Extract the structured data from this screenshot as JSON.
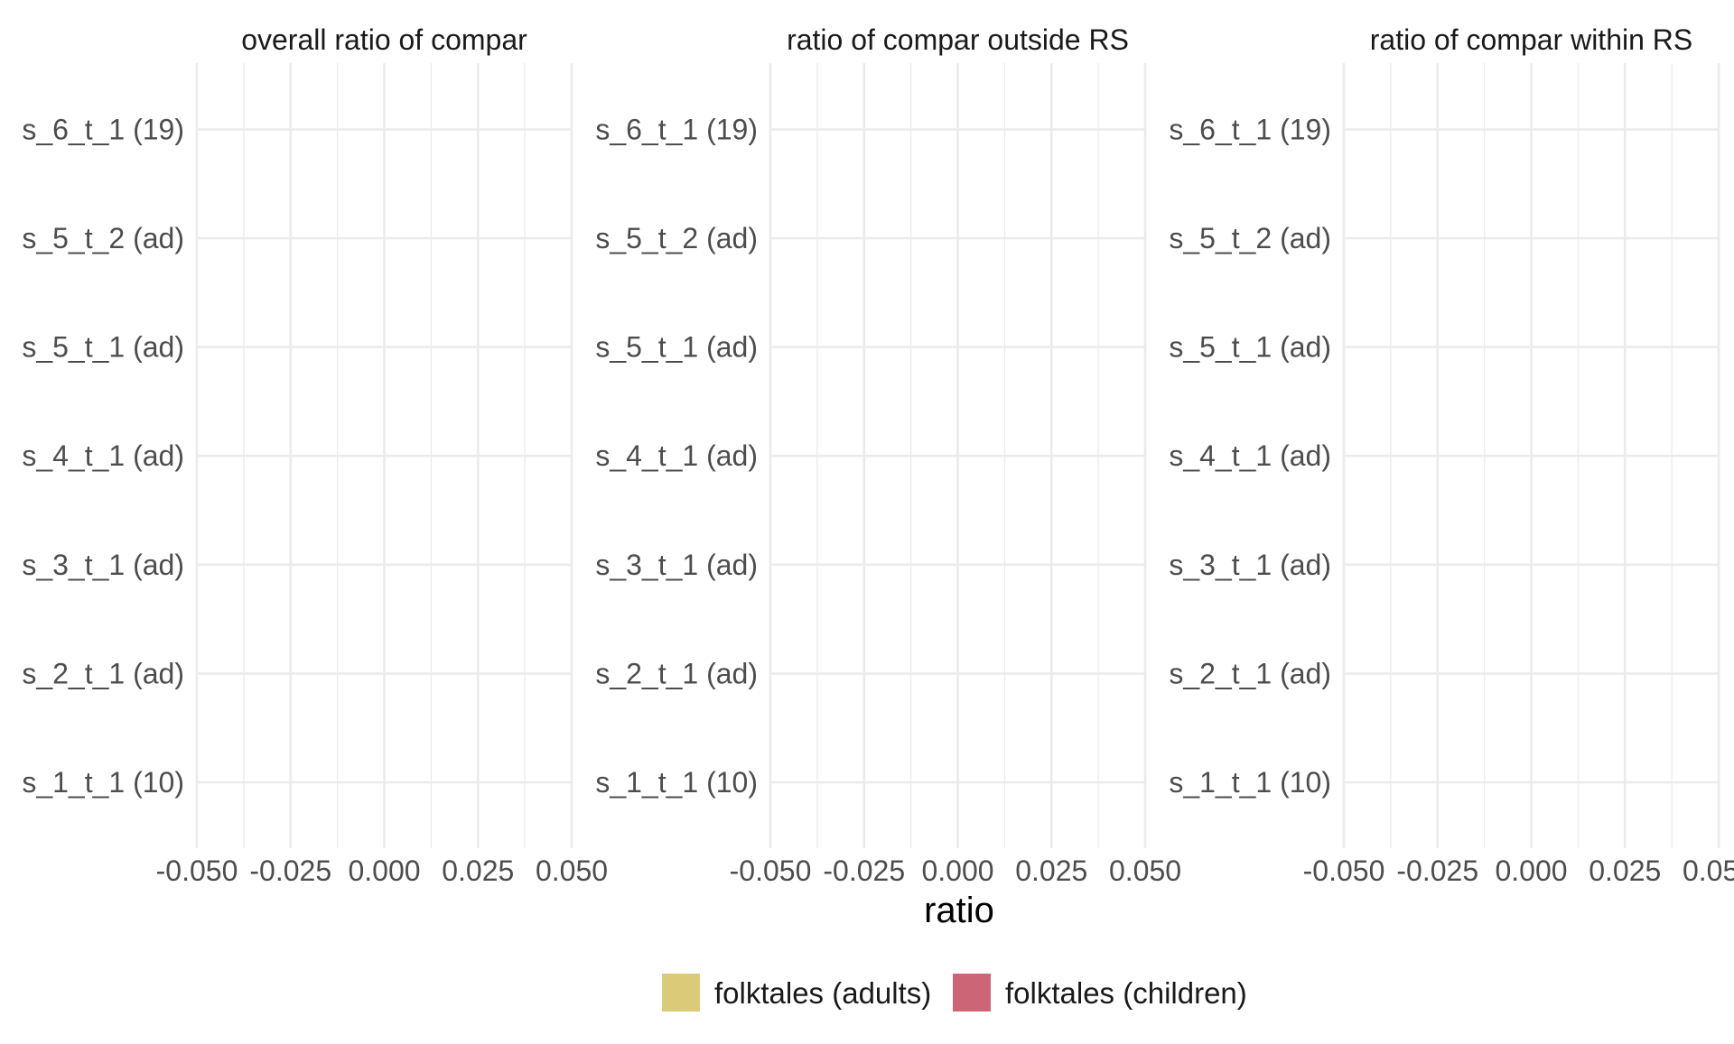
{
  "chart_data": {
    "type": "bar",
    "orientation": "horizontal",
    "xlabel": "ratio",
    "ylabel": "",
    "xlim": [
      -0.05,
      0.05
    ],
    "x_ticks": [
      "-0.050",
      "-0.025",
      "0.000",
      "0.025",
      "0.050"
    ],
    "categories": [
      "s_1_t_1 (10)",
      "s_2_t_1 (ad)",
      "s_3_t_1 (ad)",
      "s_4_t_1 (ad)",
      "s_5_t_1 (ad)",
      "s_5_t_2 (ad)",
      "s_6_t_1 (19)"
    ],
    "grid": true,
    "legend_position": "bottom",
    "legend": [
      {
        "name": "folktales (adults)",
        "color": "#DBCB78"
      },
      {
        "name": "folktales (children)",
        "color": "#CC6677"
      }
    ],
    "facets": [
      {
        "title": "overall ratio of compar",
        "series": []
      },
      {
        "title": "ratio of compar outside RS",
        "series": []
      },
      {
        "title": "ratio of compar within RS",
        "series": []
      }
    ]
  },
  "colors": {
    "gridline": "#EBEBEB",
    "tick_text": "#4D4D4D"
  }
}
